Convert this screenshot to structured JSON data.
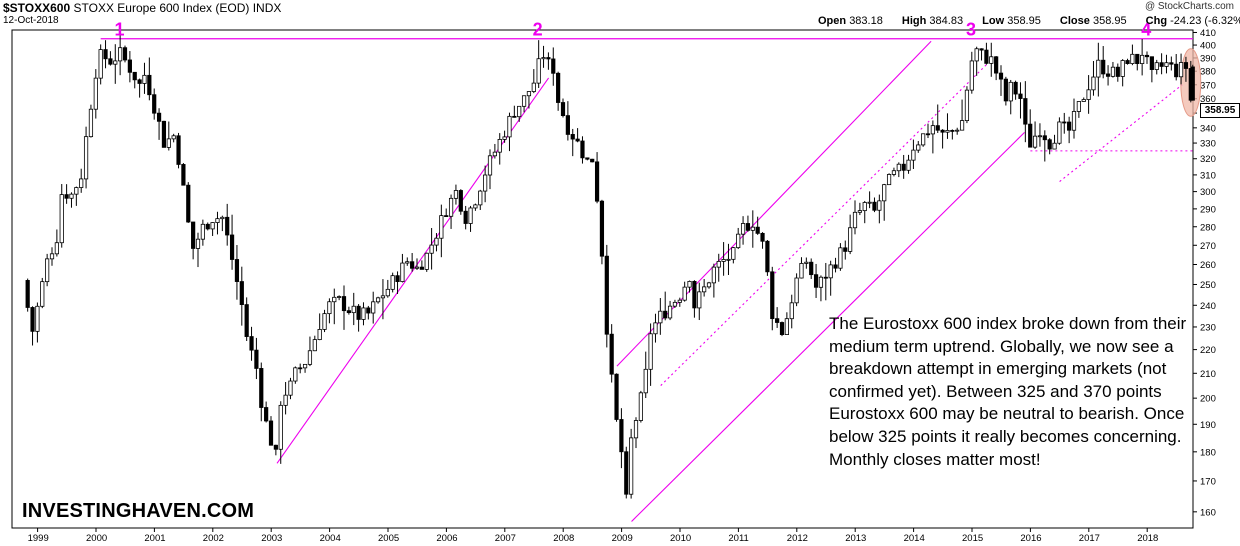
{
  "header": {
    "symbol": "$STOXX600",
    "name": "STOXX Europe 600 Index (EOD)",
    "exchange": "INDX",
    "date": "12-Oct-2018",
    "credit": "@ StockCharts.com",
    "open_label": "Open",
    "open": "383.18",
    "high_label": "High",
    "high": "384.83",
    "low_label": "Low",
    "low": "358.95",
    "close_label": "Close",
    "close": "358.95",
    "chg_label": "Chg",
    "chg": "-24.23 (-6.32%)",
    "chg_icon": "triangle-down-icon"
  },
  "annotation": "The Eurostoxx 600 index broke down from their medium term uptrend. Globally, we now see a breakdown attempt in emerging markets (not confirmed yet). Between 325 and 370 points Eurostoxx 600 may be neutral to bearish. Once below 325 points it really becomes concerning. Monthly closes matter most!",
  "brand": "INVESTINGHAVEN.COM",
  "last_price_tag": "358.95",
  "colors": {
    "up": "#ffffff",
    "down": "#000000",
    "annotation_line": "#ee00ee",
    "highlight": "#f0b8a8"
  },
  "chart_data": {
    "type": "candlestick",
    "interval": "monthly",
    "xlabel": "",
    "ylabel": "",
    "ylim": [
      155,
      412
    ],
    "y_scale": "log",
    "y_ticks": [
      160,
      170,
      180,
      190,
      200,
      210,
      220,
      230,
      240,
      250,
      260,
      270,
      280,
      290,
      300,
      310,
      320,
      330,
      340,
      350,
      360,
      370,
      380,
      390,
      400,
      410
    ],
    "x_ticks": [
      "1999",
      "2000",
      "2001",
      "2002",
      "2003",
      "2004",
      "2005",
      "2006",
      "2007",
      "2008",
      "2009",
      "2010",
      "2011",
      "2012",
      "2013",
      "2014",
      "2015",
      "2016",
      "2017",
      "2018"
    ],
    "start_year": 1998.83,
    "anchors": [
      [
        1998.83,
        252
      ],
      [
        1998.92,
        238
      ],
      [
        1999.0,
        228
      ],
      [
        1999.25,
        262
      ],
      [
        1999.42,
        275
      ],
      [
        1999.5,
        300
      ],
      [
        1999.67,
        298
      ],
      [
        1999.83,
        310
      ],
      [
        1999.92,
        335
      ],
      [
        2000.08,
        380
      ],
      [
        2000.17,
        392
      ],
      [
        2000.33,
        388
      ],
      [
        2000.5,
        393
      ],
      [
        2000.67,
        382
      ],
      [
        2000.83,
        370
      ],
      [
        2000.92,
        378
      ],
      [
        2001.08,
        355
      ],
      [
        2001.25,
        330
      ],
      [
        2001.42,
        335
      ],
      [
        2001.5,
        320
      ],
      [
        2001.67,
        280
      ],
      [
        2001.75,
        268
      ],
      [
        2001.92,
        280
      ],
      [
        2002.08,
        285
      ],
      [
        2002.25,
        285
      ],
      [
        2002.42,
        262
      ],
      [
        2002.58,
        240
      ],
      [
        2002.67,
        225
      ],
      [
        2002.83,
        212
      ],
      [
        2002.92,
        198
      ],
      [
        2003.0,
        190
      ],
      [
        2003.08,
        184
      ],
      [
        2003.17,
        178
      ],
      [
        2003.25,
        200
      ],
      [
        2003.42,
        205
      ],
      [
        2003.5,
        210
      ],
      [
        2003.67,
        215
      ],
      [
        2003.83,
        225
      ],
      [
        2003.92,
        232
      ],
      [
        2004.08,
        240
      ],
      [
        2004.25,
        242
      ],
      [
        2004.42,
        238
      ],
      [
        2004.58,
        235
      ],
      [
        2004.75,
        236
      ],
      [
        2004.92,
        243
      ],
      [
        2005.08,
        248
      ],
      [
        2005.25,
        255
      ],
      [
        2005.42,
        262
      ],
      [
        2005.58,
        258
      ],
      [
        2005.75,
        265
      ],
      [
        2005.92,
        277
      ],
      [
        2006.08,
        290
      ],
      [
        2006.25,
        300
      ],
      [
        2006.42,
        285
      ],
      [
        2006.58,
        296
      ],
      [
        2006.75,
        312
      ],
      [
        2006.92,
        325
      ],
      [
        2007.08,
        338
      ],
      [
        2007.25,
        352
      ],
      [
        2007.42,
        360
      ],
      [
        2007.58,
        372
      ],
      [
        2007.67,
        385
      ],
      [
        2007.75,
        393
      ],
      [
        2007.83,
        385
      ],
      [
        2007.92,
        382
      ],
      [
        2008.0,
        358
      ],
      [
        2008.17,
        340
      ],
      [
        2008.33,
        330
      ],
      [
        2008.5,
        318
      ],
      [
        2008.58,
        320
      ],
      [
        2008.67,
        295
      ],
      [
        2008.75,
        265
      ],
      [
        2008.83,
        230
      ],
      [
        2008.92,
        205
      ],
      [
        2009.0,
        190
      ],
      [
        2009.08,
        180
      ],
      [
        2009.17,
        162
      ],
      [
        2009.25,
        185
      ],
      [
        2009.42,
        200
      ],
      [
        2009.5,
        210
      ],
      [
        2009.58,
        228
      ],
      [
        2009.75,
        235
      ],
      [
        2009.92,
        240
      ],
      [
        2010.08,
        245
      ],
      [
        2010.25,
        255
      ],
      [
        2010.33,
        240
      ],
      [
        2010.5,
        248
      ],
      [
        2010.67,
        258
      ],
      [
        2010.83,
        262
      ],
      [
        2011.0,
        265
      ],
      [
        2011.17,
        280
      ],
      [
        2011.33,
        283
      ],
      [
        2011.5,
        270
      ],
      [
        2011.58,
        255
      ],
      [
        2011.67,
        235
      ],
      [
        2011.83,
        228
      ],
      [
        2011.92,
        235
      ],
      [
        2012.08,
        252
      ],
      [
        2012.25,
        262
      ],
      [
        2012.42,
        248
      ],
      [
        2012.58,
        255
      ],
      [
        2012.75,
        262
      ],
      [
        2012.92,
        270
      ],
      [
        2013.08,
        285
      ],
      [
        2013.25,
        292
      ],
      [
        2013.42,
        288
      ],
      [
        2013.58,
        302
      ],
      [
        2013.75,
        310
      ],
      [
        2013.92,
        315
      ],
      [
        2014.08,
        328
      ],
      [
        2014.25,
        335
      ],
      [
        2014.42,
        342
      ],
      [
        2014.58,
        335
      ],
      [
        2014.75,
        338
      ],
      [
        2014.92,
        345
      ],
      [
        2015.0,
        368
      ],
      [
        2015.08,
        388
      ],
      [
        2015.17,
        396
      ],
      [
        2015.25,
        392
      ],
      [
        2015.42,
        388
      ],
      [
        2015.58,
        370
      ],
      [
        2015.67,
        358
      ],
      [
        2015.75,
        368
      ],
      [
        2015.83,
        365
      ],
      [
        2015.92,
        360
      ],
      [
        2016.0,
        338
      ],
      [
        2016.08,
        330
      ],
      [
        2016.25,
        340
      ],
      [
        2016.42,
        330
      ],
      [
        2016.58,
        340
      ],
      [
        2016.75,
        338
      ],
      [
        2016.92,
        355
      ],
      [
        2017.08,
        370
      ],
      [
        2017.25,
        385
      ],
      [
        2017.42,
        380
      ],
      [
        2017.58,
        377
      ],
      [
        2017.75,
        390
      ],
      [
        2017.92,
        388
      ],
      [
        2018.0,
        395
      ],
      [
        2018.17,
        375
      ],
      [
        2018.25,
        382
      ],
      [
        2018.42,
        385
      ],
      [
        2018.58,
        380
      ],
      [
        2018.67,
        382
      ],
      [
        2018.75,
        383.18
      ],
      [
        2018.78,
        358.95
      ]
    ],
    "final_bar": {
      "open": 383.18,
      "high": 384.83,
      "low": 358.95,
      "close": 358.95
    },
    "peak_labels": [
      {
        "text": "1",
        "year": 2000.42
      },
      {
        "text": "2",
        "year": 2007.58
      },
      {
        "text": "3",
        "year": 2015.0
      },
      {
        "text": "4",
        "year": 2018.0
      }
    ],
    "resistance_level": 405,
    "support_level": 325,
    "trendlines": [
      {
        "style": "solid",
        "from": [
          2003.1,
          176
        ],
        "to": [
          2007.75,
          375
        ]
      },
      {
        "style": "solid",
        "from": [
          2008.92,
          213
        ],
        "to": [
          2014.3,
          403
        ]
      },
      {
        "style": "solid",
        "from": [
          2009.17,
          157
        ],
        "to": [
          2015.9,
          337
        ]
      },
      {
        "style": "dotted",
        "from": [
          2009.67,
          205
        ],
        "to": [
          2015.25,
          385
        ]
      },
      {
        "style": "dotted",
        "from": [
          2016.5,
          306
        ],
        "to": [
          2018.6,
          370
        ]
      }
    ]
  }
}
